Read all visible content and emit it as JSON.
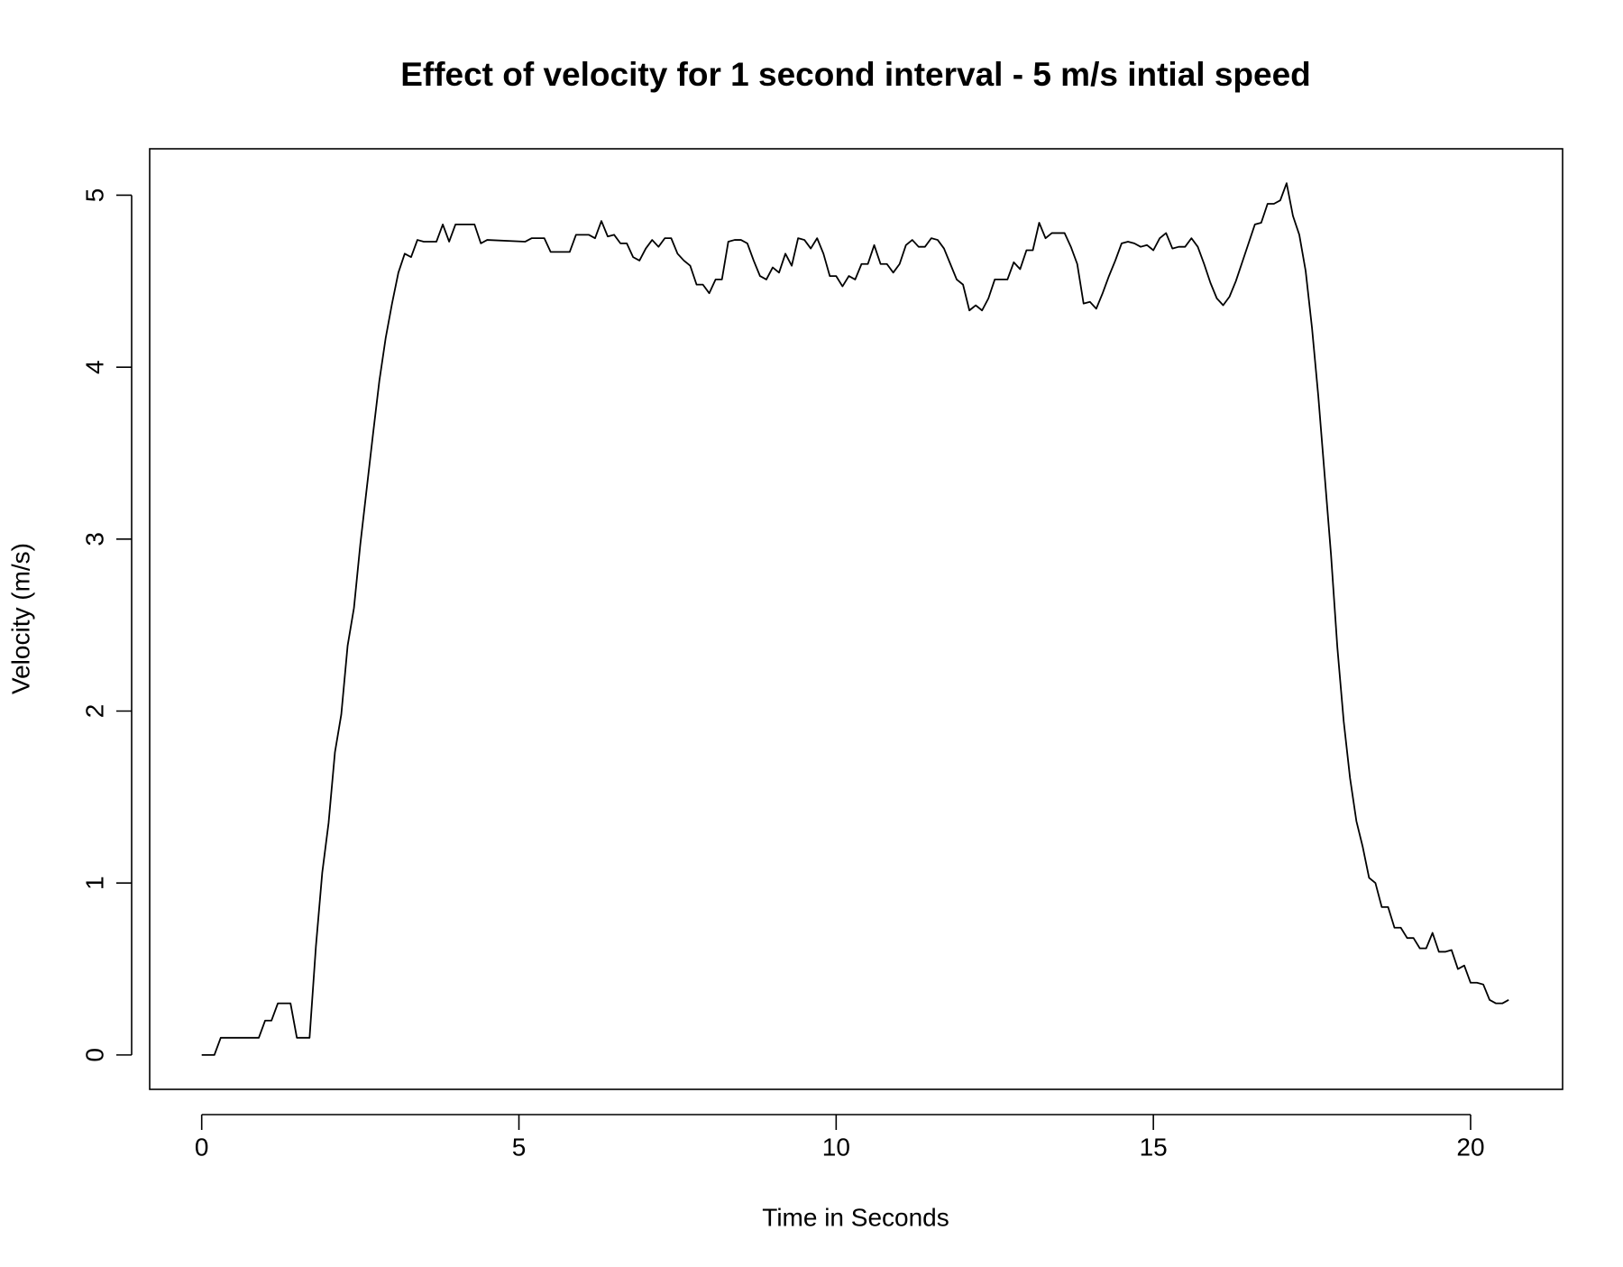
{
  "chart_data": {
    "type": "line",
    "title": "Effect of velocity for 1 second interval - 5 m/s intial speed",
    "xlabel": "Time in Seconds",
    "ylabel": "Velocity (m/s)",
    "xlim": [
      -0.82,
      21.45
    ],
    "ylim": [
      -0.2,
      5.27
    ],
    "xticks": [
      0,
      5,
      10,
      15,
      20
    ],
    "yticks": [
      0,
      1,
      2,
      3,
      4,
      5
    ],
    "series": [
      {
        "color": "#000000",
        "x": [
          0,
          0.2,
          0.3,
          0.9,
          1.0,
          1.1,
          1.2,
          1.4,
          1.5,
          1.7,
          1.8,
          1.9,
          2.0,
          2.1,
          2.2,
          2.3,
          2.4,
          2.5,
          2.6,
          2.7,
          2.8,
          2.9,
          3.0,
          3.1,
          3.2,
          3.3,
          3.4,
          3.5,
          3.7,
          3.8,
          3.9,
          4.0,
          4.3,
          4.4,
          4.5,
          5.1,
          5.2,
          5.4,
          5.5,
          5.8,
          5.9,
          6.1,
          6.2,
          6.3,
          6.4,
          6.5,
          6.6,
          6.7,
          6.8,
          6.9,
          7.0,
          7.1,
          7.2,
          7.3,
          7.4,
          7.5,
          7.6,
          7.7,
          7.8,
          7.9,
          8.0,
          8.1,
          8.2,
          8.3,
          8.4,
          8.5,
          8.6,
          8.7,
          8.8,
          8.9,
          9.0,
          9.1,
          9.2,
          9.3,
          9.4,
          9.5,
          9.6,
          9.7,
          9.8,
          9.9,
          10.0,
          10.1,
          10.2,
          10.3,
          10.4,
          10.5,
          10.6,
          10.7,
          10.8,
          10.9,
          11.0,
          11.1,
          11.2,
          11.3,
          11.4,
          11.5,
          11.6,
          11.7,
          11.8,
          11.9,
          12.0,
          12.1,
          12.2,
          12.3,
          12.4,
          12.5,
          12.7,
          12.8,
          12.9,
          13.0,
          13.1,
          13.2,
          13.3,
          13.4,
          13.6,
          13.7,
          13.8,
          13.9,
          14.0,
          14.1,
          14.2,
          14.3,
          14.4,
          14.5,
          14.6,
          14.7,
          14.8,
          14.9,
          15.0,
          15.1,
          15.2,
          15.3,
          15.4,
          15.5,
          15.6,
          15.7,
          15.8,
          15.9,
          16.0,
          16.1,
          16.2,
          16.3,
          16.4,
          16.5,
          16.6,
          16.7,
          16.8,
          16.9,
          17.0,
          17.1,
          17.2,
          17.3,
          17.4,
          17.5,
          17.6,
          17.7,
          17.8,
          17.9,
          18.0,
          18.1,
          18.2,
          18.3,
          18.4,
          18.5,
          18.6,
          18.7,
          18.8,
          18.9,
          19.0,
          19.1,
          19.2,
          19.3,
          19.4,
          19.5,
          19.6,
          19.7,
          19.8,
          19.9,
          20.0,
          20.1,
          20.2,
          20.3,
          20.4,
          20.5,
          20.6
        ],
        "values": [
          0,
          0,
          0.1,
          0.1,
          0.2,
          0.2,
          0.3,
          0.3,
          0.1,
          0.1,
          0.63,
          1.06,
          1.35,
          1.76,
          1.98,
          2.38,
          2.6,
          2.97,
          3.29,
          3.61,
          3.92,
          4.17,
          4.37,
          4.55,
          4.66,
          4.64,
          4.74,
          4.73,
          4.73,
          4.83,
          4.73,
          4.83,
          4.83,
          4.72,
          4.74,
          4.73,
          4.75,
          4.75,
          4.67,
          4.67,
          4.77,
          4.77,
          4.75,
          4.85,
          4.76,
          4.77,
          4.72,
          4.72,
          4.64,
          4.62,
          4.69,
          4.74,
          4.7,
          4.75,
          4.75,
          4.66,
          4.62,
          4.59,
          4.48,
          4.48,
          4.43,
          4.51,
          4.51,
          4.73,
          4.74,
          4.74,
          4.72,
          4.62,
          4.53,
          4.51,
          4.58,
          4.55,
          4.66,
          4.59,
          4.75,
          4.74,
          4.69,
          4.75,
          4.66,
          4.53,
          4.53,
          4.47,
          4.53,
          4.51,
          4.6,
          4.6,
          4.71,
          4.6,
          4.6,
          4.55,
          4.6,
          4.71,
          4.74,
          4.7,
          4.7,
          4.75,
          4.74,
          4.69,
          4.6,
          4.51,
          4.48,
          4.33,
          4.36,
          4.33,
          4.4,
          4.51,
          4.51,
          4.61,
          4.57,
          4.68,
          4.68,
          4.84,
          4.75,
          4.78,
          4.78,
          4.7,
          4.6,
          4.37,
          4.38,
          4.34,
          4.43,
          4.53,
          4.62,
          4.72,
          4.73,
          4.72,
          4.7,
          4.71,
          4.68,
          4.75,
          4.78,
          4.69,
          4.7,
          4.7,
          4.75,
          4.7,
          4.6,
          4.49,
          4.4,
          4.36,
          4.41,
          4.5,
          4.61,
          4.72,
          4.83,
          4.84,
          4.95,
          4.95,
          4.97,
          5.07,
          4.88,
          4.77,
          4.56,
          4.23,
          3.83,
          3.37,
          2.91,
          2.37,
          1.94,
          1.61,
          1.36,
          1.21,
          1.03,
          1.0,
          0.86,
          0.86,
          0.74,
          0.74,
          0.68,
          0.68,
          0.62,
          0.62,
          0.71,
          0.6,
          0.6,
          0.61,
          0.5,
          0.52,
          0.42,
          0.42,
          0.41,
          0.32,
          0.3,
          0.3,
          0.32
        ]
      }
    ]
  }
}
